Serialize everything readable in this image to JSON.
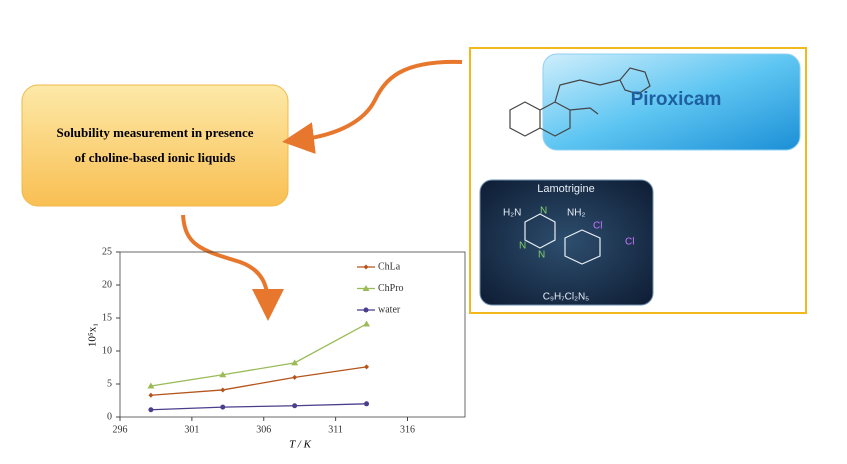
{
  "diagram": {
    "process_lines": [
      "Solubility measurement in presence",
      "of choline-based ionic liquids"
    ],
    "piroxicam": {
      "name": "Piroxicam"
    },
    "lamotrigine": {
      "name": "Lamotrigine",
      "formula": "C₉H₇Cl₂N₅",
      "atoms": [
        "H₂N",
        "N",
        "NH₂",
        "N",
        "N",
        "Cl",
        "Cl"
      ]
    }
  },
  "chart_data": {
    "type": "line",
    "x_label": "T / K",
    "y_label": "10⁵x₁",
    "x": [
      298.15,
      303.15,
      308.15,
      313.15
    ],
    "series": [
      {
        "name": "ChLa",
        "color": "#b5541b",
        "marker": "diamond",
        "values": [
          3.3,
          4.1,
          6.0,
          7.6
        ]
      },
      {
        "name": "ChPro",
        "color": "#9bbb59",
        "marker": "triangle",
        "values": [
          4.7,
          6.4,
          8.2,
          14.1
        ]
      },
      {
        "name": "water",
        "color": "#4b3f8c",
        "marker": "circle",
        "values": [
          1.1,
          1.5,
          1.7,
          2.0
        ]
      }
    ],
    "xlim": [
      296,
      320
    ],
    "xticks": [
      296,
      301,
      306,
      311,
      316
    ],
    "ylim": [
      0,
      25
    ],
    "yticks": [
      0,
      5,
      10,
      15,
      20,
      25
    ]
  }
}
